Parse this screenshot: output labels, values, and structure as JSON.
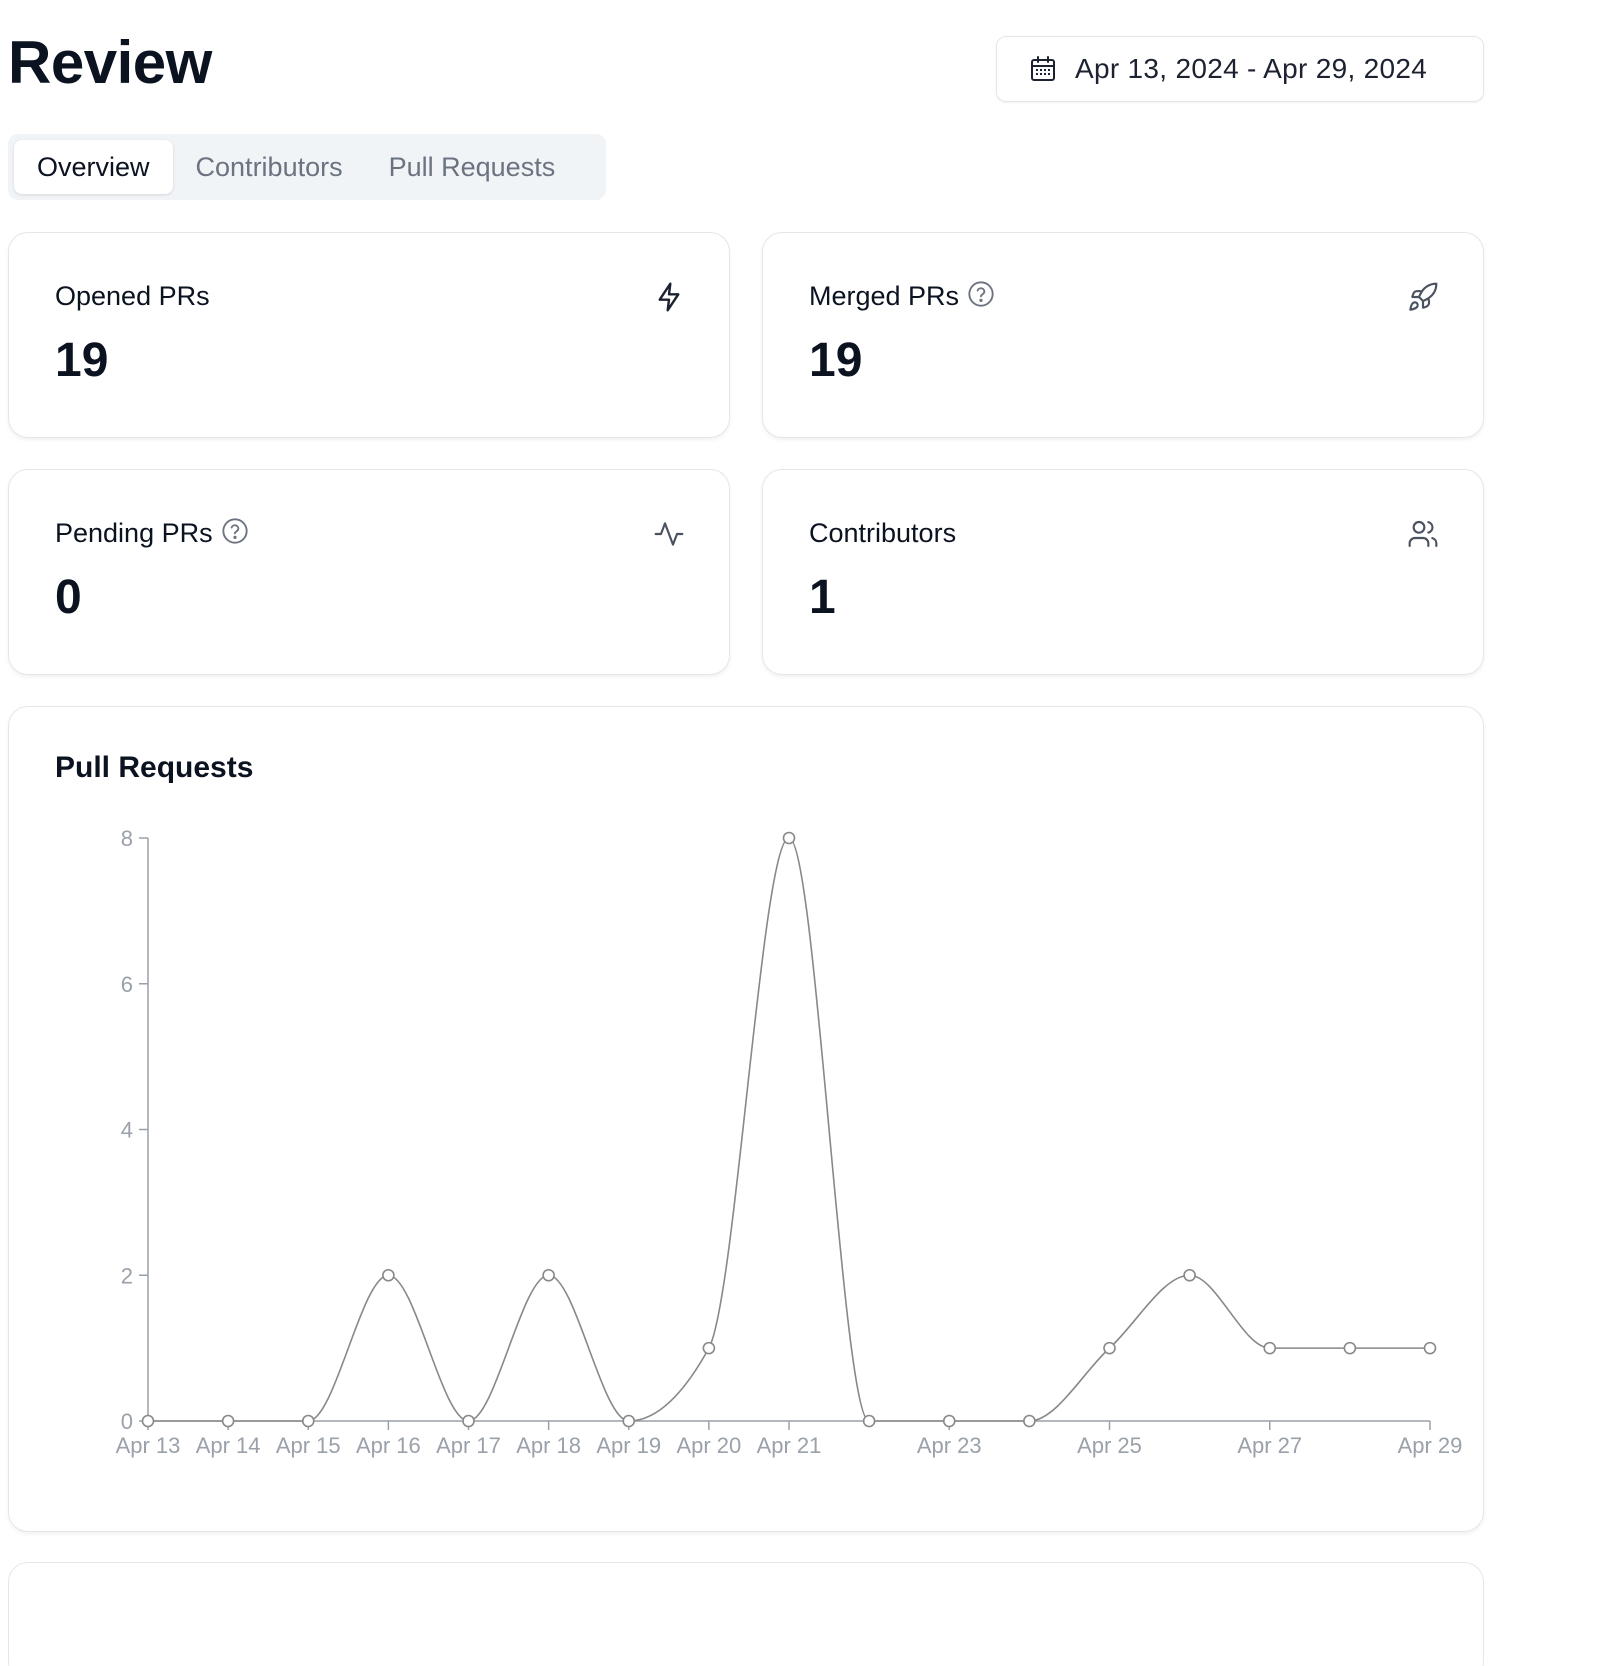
{
  "page": {
    "title": "Review"
  },
  "date_range": {
    "icon": "calendar-icon",
    "label": "Apr 13, 2024 - Apr 29, 2024"
  },
  "tabs": [
    {
      "label": "Overview",
      "active": true
    },
    {
      "label": "Contributors",
      "active": false
    },
    {
      "label": "Pull Requests",
      "active": false
    }
  ],
  "stats": {
    "opened": {
      "label": "Opened PRs",
      "value": "19",
      "icon": "lightning-icon"
    },
    "merged": {
      "label": "Merged PRs",
      "value": "19",
      "icon": "rocket-icon",
      "help_icon": "help-circle-icon"
    },
    "pending": {
      "label": "Pending PRs",
      "value": "0",
      "icon": "activity-icon",
      "help_icon": "help-circle-icon"
    },
    "contributors": {
      "label": "Contributors",
      "value": "1",
      "icon": "users-icon"
    }
  },
  "pull_requests_card": {
    "title": "Pull Requests"
  },
  "chart_data": {
    "type": "line",
    "x": [
      "Apr 13",
      "Apr 14",
      "Apr 15",
      "Apr 16",
      "Apr 17",
      "Apr 18",
      "Apr 19",
      "Apr 20",
      "Apr 21",
      "Apr 22",
      "Apr 23",
      "Apr 24",
      "Apr 25",
      "Apr 26",
      "Apr 27",
      "Apr 28",
      "Apr 29"
    ],
    "x_tick_labels": [
      "Apr 13",
      "Apr 14",
      "Apr 15",
      "Apr 16",
      "Apr 17",
      "Apr 18",
      "Apr 19",
      "Apr 20",
      "Apr 21",
      "",
      "Apr 23",
      "",
      "Apr 25",
      "",
      "Apr 27",
      "",
      "Apr 29"
    ],
    "values": [
      0,
      0,
      0,
      2,
      0,
      2,
      0,
      1,
      8,
      0,
      0,
      0,
      1,
      2,
      1,
      1,
      1
    ],
    "yticks": [
      0,
      2,
      4,
      6,
      8
    ],
    "ylim": [
      0,
      8
    ],
    "line_color": "#888888",
    "grid": false,
    "legend": "none"
  },
  "colors": {
    "text_primary": "#0b1220",
    "text_muted": "#6b7380",
    "axis": "#9aa1aa"
  }
}
